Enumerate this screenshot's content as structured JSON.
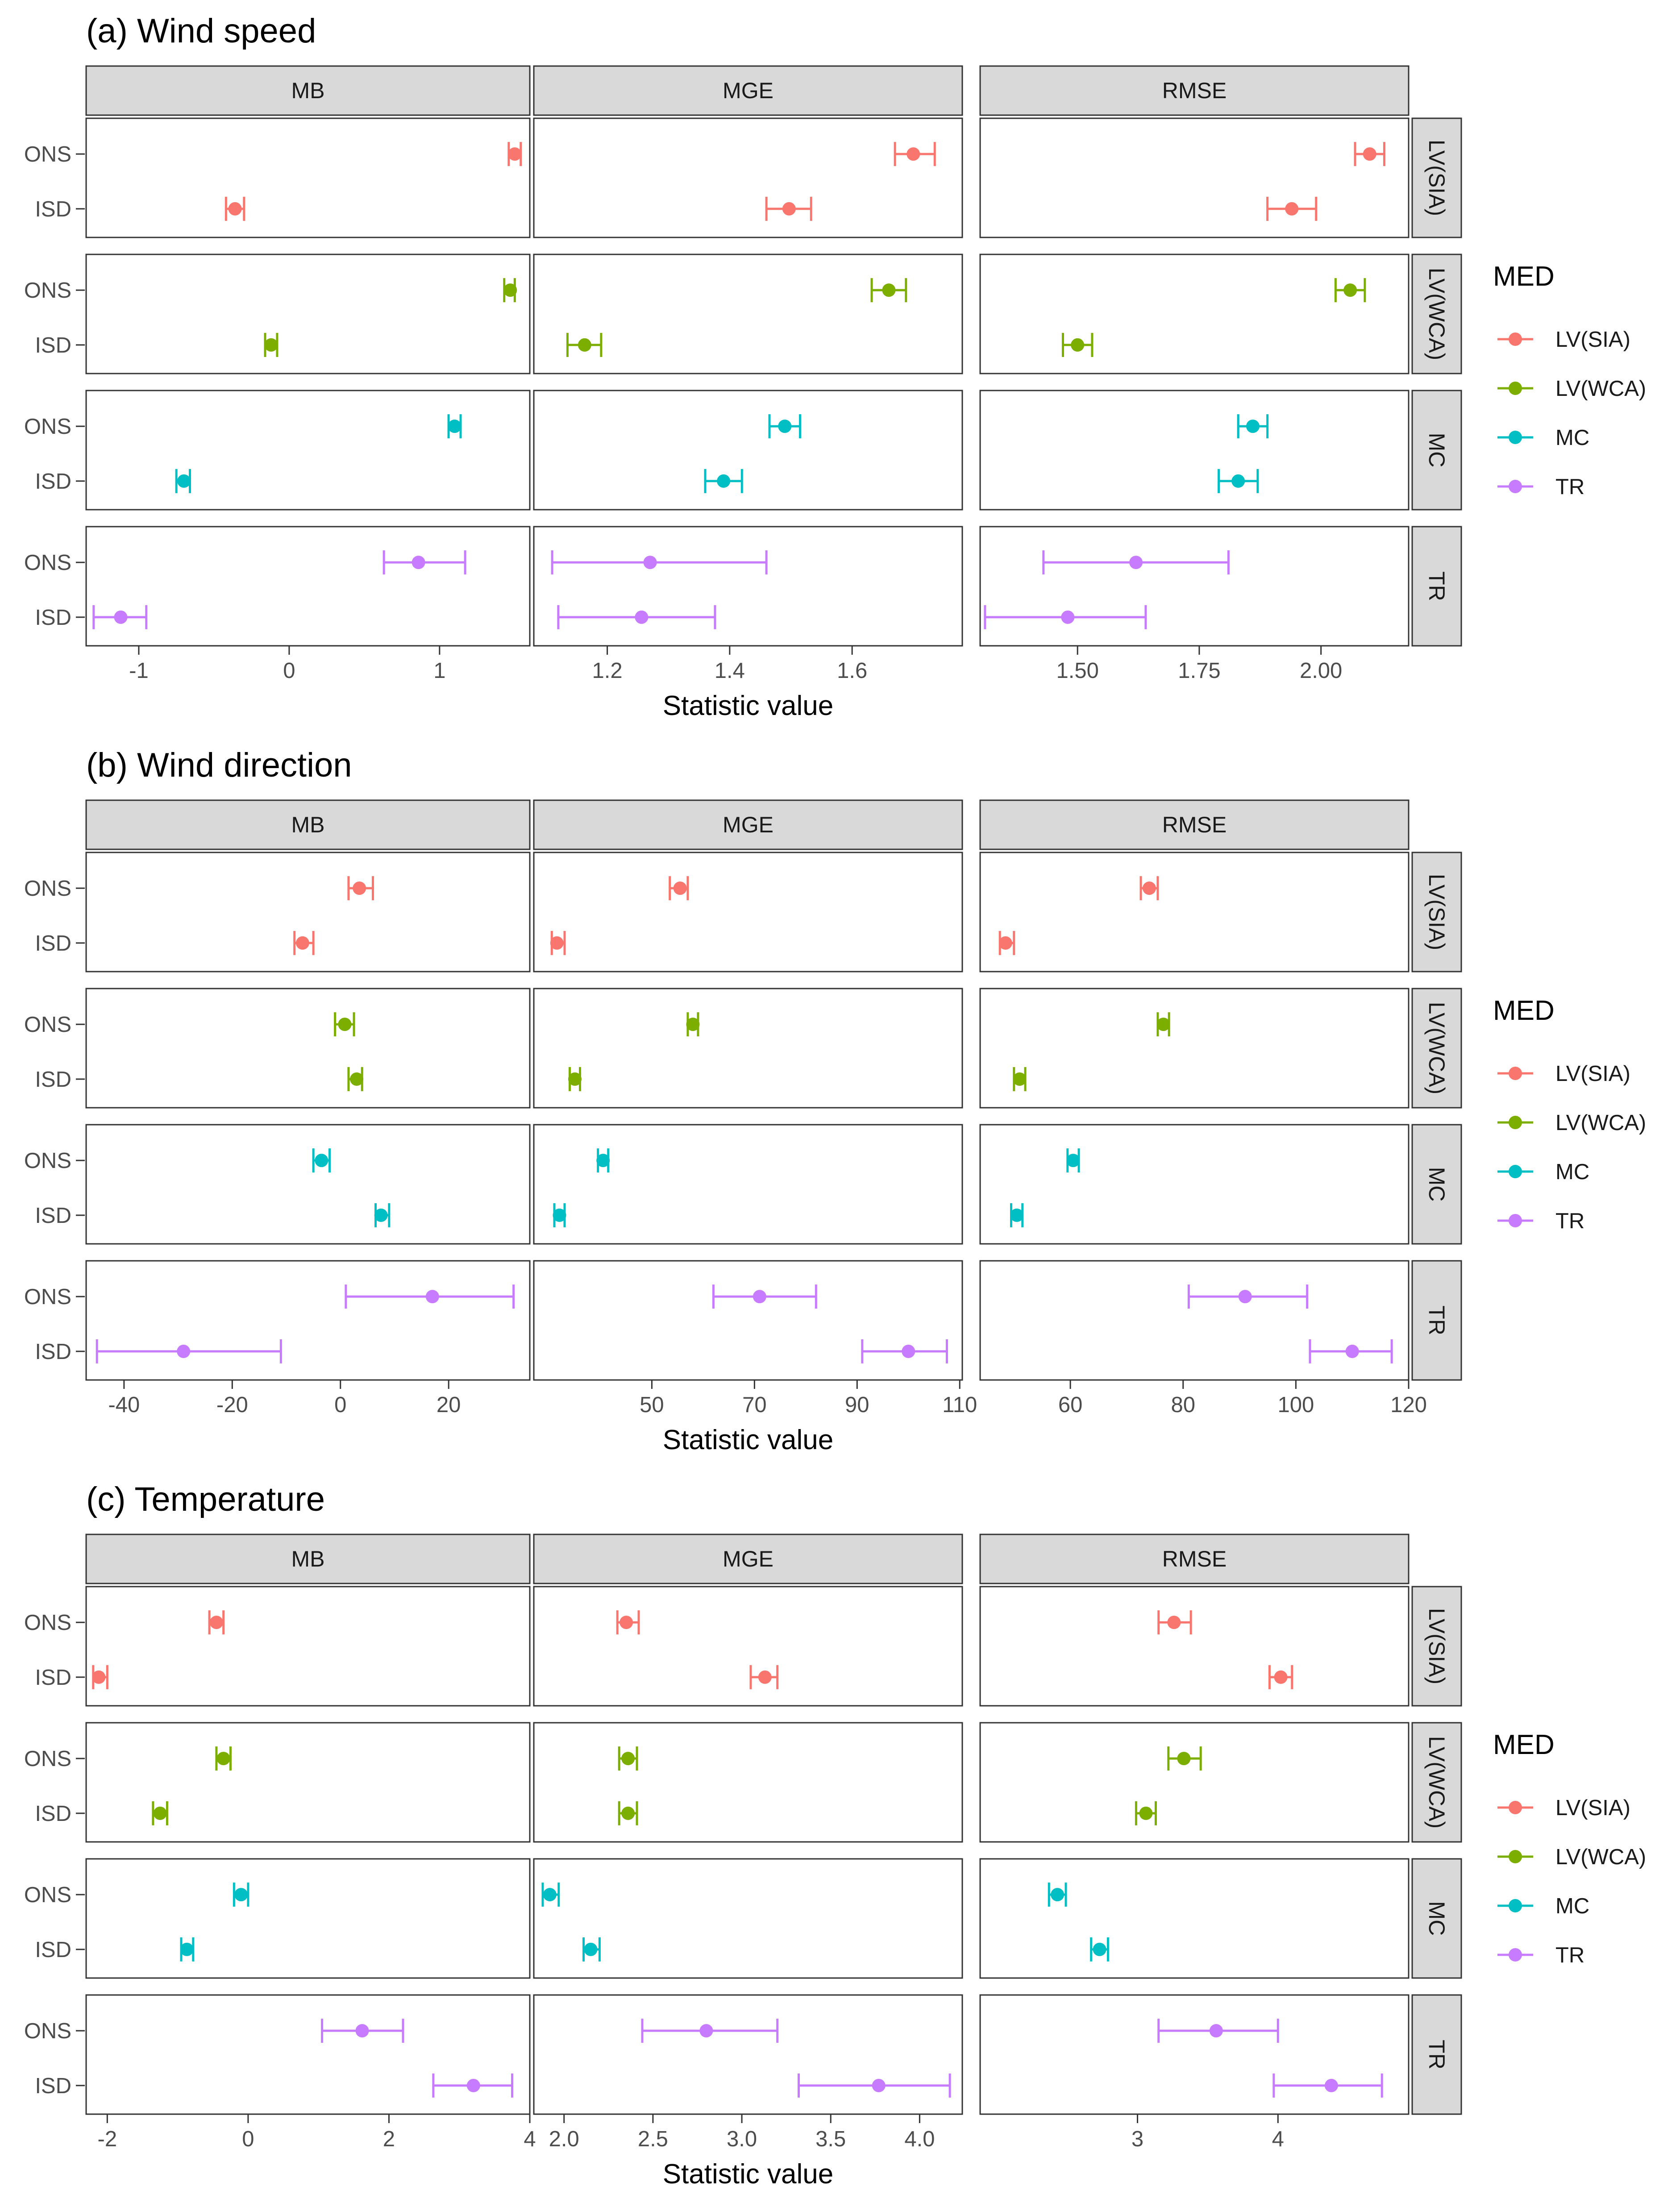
{
  "colors": {
    "LV(SIA)": "#F8766D",
    "LV(WCA)": "#7CAE00",
    "MC": "#00BFC4",
    "TR": "#C77CFF",
    "strip_bg": "#D9D9D9",
    "panel_border": "#333333"
  },
  "legend": {
    "title": "MED",
    "items": [
      "LV(SIA)",
      "LV(WCA)",
      "MC",
      "TR"
    ]
  },
  "chart_data": [
    {
      "type": "errorbar",
      "title": "(a) Wind speed",
      "xlabel": "Statistic value",
      "columns": [
        "MB",
        "MGE",
        "RMSE"
      ],
      "rows": [
        "LV(SIA)",
        "LV(WCA)",
        "MC",
        "TR"
      ],
      "categories": [
        "ONS",
        "ISD"
      ],
      "xlim": {
        "MB": [
          -1.35,
          1.6
        ],
        "MGE": [
          1.08,
          1.78
        ],
        "RMSE": [
          1.3,
          2.18
        ]
      },
      "xticks": {
        "MB": [
          {
            "v": -1,
            "label": "-1"
          },
          {
            "v": 0,
            "label": "0"
          },
          {
            "v": 1,
            "label": "1"
          }
        ],
        "MGE": [
          {
            "v": 1.2,
            "label": "1.2"
          },
          {
            "v": 1.4,
            "label": "1.4"
          },
          {
            "v": 1.6,
            "label": "1.6"
          }
        ],
        "RMSE": [
          {
            "v": 1.5,
            "label": "1.50"
          },
          {
            "v": 1.75,
            "label": "1.75"
          },
          {
            "v": 2.0,
            "label": "2.00"
          }
        ]
      },
      "series": [
        {
          "row": "LV(SIA)",
          "col": "MB",
          "ONS": {
            "est": 1.5,
            "lo": 1.46,
            "hi": 1.54
          },
          "ISD": {
            "est": -0.36,
            "lo": -0.42,
            "hi": -0.3
          }
        },
        {
          "row": "LV(SIA)",
          "col": "MGE",
          "ONS": {
            "est": 1.7,
            "lo": 1.67,
            "hi": 1.735
          },
          "ISD": {
            "est": 1.497,
            "lo": 1.46,
            "hi": 1.533
          }
        },
        {
          "row": "LV(SIA)",
          "col": "RMSE",
          "ONS": {
            "est": 2.1,
            "lo": 2.07,
            "hi": 2.13
          },
          "ISD": {
            "est": 1.94,
            "lo": 1.89,
            "hi": 1.99
          }
        },
        {
          "row": "LV(WCA)",
          "col": "MB",
          "ONS": {
            "est": 1.47,
            "lo": 1.43,
            "hi": 1.5
          },
          "ISD": {
            "est": -0.12,
            "lo": -0.16,
            "hi": -0.08
          }
        },
        {
          "row": "LV(WCA)",
          "col": "MGE",
          "ONS": {
            "est": 1.66,
            "lo": 1.632,
            "hi": 1.688
          },
          "ISD": {
            "est": 1.163,
            "lo": 1.135,
            "hi": 1.19
          }
        },
        {
          "row": "LV(WCA)",
          "col": "RMSE",
          "ONS": {
            "est": 2.06,
            "lo": 2.03,
            "hi": 2.09
          },
          "ISD": {
            "est": 1.5,
            "lo": 1.47,
            "hi": 1.53
          }
        },
        {
          "row": "MC",
          "col": "MB",
          "ONS": {
            "est": 1.1,
            "lo": 1.06,
            "hi": 1.14
          },
          "ISD": {
            "est": -0.7,
            "lo": -0.75,
            "hi": -0.66
          }
        },
        {
          "row": "MC",
          "col": "MGE",
          "ONS": {
            "est": 1.49,
            "lo": 1.465,
            "hi": 1.515
          },
          "ISD": {
            "est": 1.39,
            "lo": 1.36,
            "hi": 1.42
          }
        },
        {
          "row": "MC",
          "col": "RMSE",
          "ONS": {
            "est": 1.86,
            "lo": 1.83,
            "hi": 1.89
          },
          "ISD": {
            "est": 1.83,
            "lo": 1.79,
            "hi": 1.87
          }
        },
        {
          "row": "TR",
          "col": "MB",
          "ONS": {
            "est": 0.86,
            "lo": 0.63,
            "hi": 1.17
          },
          "ISD": {
            "est": -1.12,
            "lo": -1.3,
            "hi": -0.95
          }
        },
        {
          "row": "TR",
          "col": "MGE",
          "ONS": {
            "est": 1.27,
            "lo": 1.11,
            "hi": 1.46
          },
          "ISD": {
            "est": 1.256,
            "lo": 1.12,
            "hi": 1.376
          }
        },
        {
          "row": "TR",
          "col": "RMSE",
          "ONS": {
            "est": 1.62,
            "lo": 1.43,
            "hi": 1.81
          },
          "ISD": {
            "est": 1.48,
            "lo": 1.31,
            "hi": 1.64
          }
        }
      ]
    },
    {
      "type": "errorbar",
      "title": "(b) Wind direction",
      "xlabel": "Statistic value",
      "columns": [
        "MB",
        "MGE",
        "RMSE"
      ],
      "rows": [
        "LV(SIA)",
        "LV(WCA)",
        "MC",
        "TR"
      ],
      "categories": [
        "ONS",
        "ISD"
      ],
      "xlim": {
        "MB": [
          -47,
          35
        ],
        "MGE": [
          27,
          110.5
        ],
        "RMSE": [
          44,
          120
        ]
      },
      "xticks": {
        "MB": [
          {
            "v": -40,
            "label": "-40"
          },
          {
            "v": -20,
            "label": "-20"
          },
          {
            "v": 0,
            "label": "0"
          },
          {
            "v": 20,
            "label": "20"
          }
        ],
        "MGE": [
          {
            "v": 50,
            "label": "50"
          },
          {
            "v": 70,
            "label": "70"
          },
          {
            "v": 90,
            "label": "90"
          },
          {
            "v": 110,
            "label": "110"
          }
        ],
        "RMSE": [
          {
            "v": 60,
            "label": "60"
          },
          {
            "v": 80,
            "label": "80"
          },
          {
            "v": 100,
            "label": "100"
          },
          {
            "v": 120,
            "label": "120"
          }
        ]
      },
      "series": [
        {
          "row": "LV(SIA)",
          "col": "MB",
          "ONS": {
            "est": 3.5,
            "lo": 1.5,
            "hi": 6
          },
          "ISD": {
            "est": -7,
            "lo": -8.5,
            "hi": -5
          }
        },
        {
          "row": "LV(SIA)",
          "col": "MGE",
          "ONS": {
            "est": 55.5,
            "lo": 53.5,
            "hi": 57
          },
          "ISD": {
            "est": 31.5,
            "lo": 30.5,
            "hi": 33
          }
        },
        {
          "row": "LV(SIA)",
          "col": "RMSE",
          "ONS": {
            "est": 74,
            "lo": 72.5,
            "hi": 75.5
          },
          "ISD": {
            "est": 48.5,
            "lo": 47.5,
            "hi": 50
          }
        },
        {
          "row": "LV(WCA)",
          "col": "MB",
          "ONS": {
            "est": 0.8,
            "lo": -1,
            "hi": 2.5
          },
          "ISD": {
            "est": 3,
            "lo": 1.5,
            "hi": 4
          }
        },
        {
          "row": "LV(WCA)",
          "col": "MGE",
          "ONS": {
            "est": 58,
            "lo": 57,
            "hi": 59
          },
          "ISD": {
            "est": 35,
            "lo": 34,
            "hi": 36
          }
        },
        {
          "row": "LV(WCA)",
          "col": "RMSE",
          "ONS": {
            "est": 76.5,
            "lo": 75.5,
            "hi": 77.5
          },
          "ISD": {
            "est": 51,
            "lo": 50,
            "hi": 52
          }
        },
        {
          "row": "MC",
          "col": "MB",
          "ONS": {
            "est": -3.5,
            "lo": -5,
            "hi": -2
          },
          "ISD": {
            "est": 7.5,
            "lo": 6.5,
            "hi": 9
          }
        },
        {
          "row": "MC",
          "col": "MGE",
          "ONS": {
            "est": 40.5,
            "lo": 39.5,
            "hi": 41.5
          },
          "ISD": {
            "est": 32,
            "lo": 31,
            "hi": 33
          }
        },
        {
          "row": "MC",
          "col": "RMSE",
          "ONS": {
            "est": 60.5,
            "lo": 59.5,
            "hi": 61.5
          },
          "ISD": {
            "est": 50.5,
            "lo": 49.5,
            "hi": 51.5
          }
        },
        {
          "row": "TR",
          "col": "MB",
          "ONS": {
            "est": 17,
            "lo": 1,
            "hi": 32
          },
          "ISD": {
            "est": -29,
            "lo": -45,
            "hi": -11
          }
        },
        {
          "row": "TR",
          "col": "MGE",
          "ONS": {
            "est": 71,
            "lo": 62,
            "hi": 82
          },
          "ISD": {
            "est": 100,
            "lo": 91,
            "hi": 107.5
          }
        },
        {
          "row": "TR",
          "col": "RMSE",
          "ONS": {
            "est": 91,
            "lo": 81,
            "hi": 102
          },
          "ISD": {
            "est": 110,
            "lo": 102.5,
            "hi": 117
          }
        }
      ]
    },
    {
      "type": "errorbar",
      "title": "(c) Temperature",
      "xlabel": "Statistic value",
      "columns": [
        "MB",
        "MGE",
        "RMSE"
      ],
      "rows": [
        "LV(SIA)",
        "LV(WCA)",
        "MC",
        "TR"
      ],
      "categories": [
        "ONS",
        "ISD"
      ],
      "xlim": {
        "MB": [
          -2.3,
          4.0
        ],
        "MGE": [
          1.83,
          4.24
        ],
        "RMSE": [
          1.88,
          4.93
        ]
      },
      "xticks": {
        "MB": [
          {
            "v": -2,
            "label": "-2"
          },
          {
            "v": 0,
            "label": "0"
          },
          {
            "v": 2,
            "label": "2"
          },
          {
            "v": 4,
            "label": "4"
          }
        ],
        "MGE": [
          {
            "v": 2.0,
            "label": "2.0"
          },
          {
            "v": 2.5,
            "label": "2.5"
          },
          {
            "v": 3.0,
            "label": "3.0"
          },
          {
            "v": 3.5,
            "label": "3.5"
          },
          {
            "v": 4.0,
            "label": "4.0"
          }
        ],
        "RMSE": [
          {
            "v": 3,
            "label": "3"
          },
          {
            "v": 4,
            "label": "4"
          }
        ]
      },
      "series": [
        {
          "row": "LV(SIA)",
          "col": "MB",
          "ONS": {
            "est": -0.45,
            "lo": -0.55,
            "hi": -0.35
          },
          "ISD": {
            "est": -2.12,
            "lo": -2.2,
            "hi": -2.0
          }
        },
        {
          "row": "LV(SIA)",
          "col": "MGE",
          "ONS": {
            "est": 2.35,
            "lo": 2.3,
            "hi": 2.42
          },
          "ISD": {
            "est": 3.13,
            "lo": 3.05,
            "hi": 3.2
          }
        },
        {
          "row": "LV(SIA)",
          "col": "RMSE",
          "ONS": {
            "est": 3.26,
            "lo": 3.15,
            "hi": 3.38
          },
          "ISD": {
            "est": 4.02,
            "lo": 3.94,
            "hi": 4.1
          }
        },
        {
          "row": "LV(WCA)",
          "col": "MB",
          "ONS": {
            "est": -0.35,
            "lo": -0.45,
            "hi": -0.25
          },
          "ISD": {
            "est": -1.25,
            "lo": -1.35,
            "hi": -1.15
          }
        },
        {
          "row": "LV(WCA)",
          "col": "MGE",
          "ONS": {
            "est": 2.36,
            "lo": 2.31,
            "hi": 2.41
          },
          "ISD": {
            "est": 2.36,
            "lo": 2.31,
            "hi": 2.41
          }
        },
        {
          "row": "LV(WCA)",
          "col": "RMSE",
          "ONS": {
            "est": 3.33,
            "lo": 3.22,
            "hi": 3.45
          },
          "ISD": {
            "est": 3.06,
            "lo": 2.99,
            "hi": 3.13
          }
        },
        {
          "row": "MC",
          "col": "MB",
          "ONS": {
            "est": -0.1,
            "lo": -0.2,
            "hi": 0.0
          },
          "ISD": {
            "est": -0.87,
            "lo": -0.95,
            "hi": -0.78
          }
        },
        {
          "row": "MC",
          "col": "MGE",
          "ONS": {
            "est": 1.92,
            "lo": 1.88,
            "hi": 1.97
          },
          "ISD": {
            "est": 2.15,
            "lo": 2.11,
            "hi": 2.2
          }
        },
        {
          "row": "MC",
          "col": "RMSE",
          "ONS": {
            "est": 2.43,
            "lo": 2.37,
            "hi": 2.49
          },
          "ISD": {
            "est": 2.73,
            "lo": 2.67,
            "hi": 2.79
          }
        },
        {
          "row": "TR",
          "col": "MB",
          "ONS": {
            "est": 1.62,
            "lo": 1.05,
            "hi": 2.2
          },
          "ISD": {
            "est": 3.2,
            "lo": 2.63,
            "hi": 3.75
          }
        },
        {
          "row": "TR",
          "col": "MGE",
          "ONS": {
            "est": 2.8,
            "lo": 2.44,
            "hi": 3.2
          },
          "ISD": {
            "est": 3.77,
            "lo": 3.32,
            "hi": 4.17
          }
        },
        {
          "row": "TR",
          "col": "RMSE",
          "ONS": {
            "est": 3.56,
            "lo": 3.15,
            "hi": 4.0
          },
          "ISD": {
            "est": 4.38,
            "lo": 3.97,
            "hi": 4.74
          }
        }
      ]
    }
  ]
}
